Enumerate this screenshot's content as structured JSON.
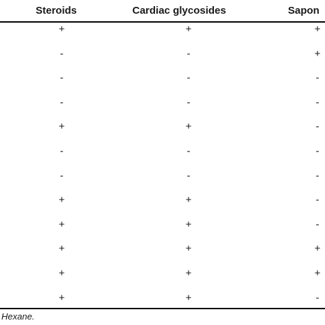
{
  "table": {
    "headers": [
      "Steroids",
      "Cardiac glycosides",
      "Sapon"
    ],
    "rows": [
      [
        "+",
        "+",
        "+"
      ],
      [
        "-",
        "-",
        "+"
      ],
      [
        "-",
        "-",
        "-"
      ],
      [
        "-",
        "-",
        "-"
      ],
      [
        "+",
        "+",
        "-"
      ],
      [
        "-",
        "-",
        "-"
      ],
      [
        "-",
        "-",
        "-"
      ],
      [
        "+",
        "+",
        "-"
      ],
      [
        "+",
        "+",
        "-"
      ],
      [
        "+",
        "+",
        "+"
      ],
      [
        "+",
        "+",
        "+"
      ],
      [
        "+",
        "+",
        "-"
      ]
    ]
  },
  "footnote": "Hexane."
}
